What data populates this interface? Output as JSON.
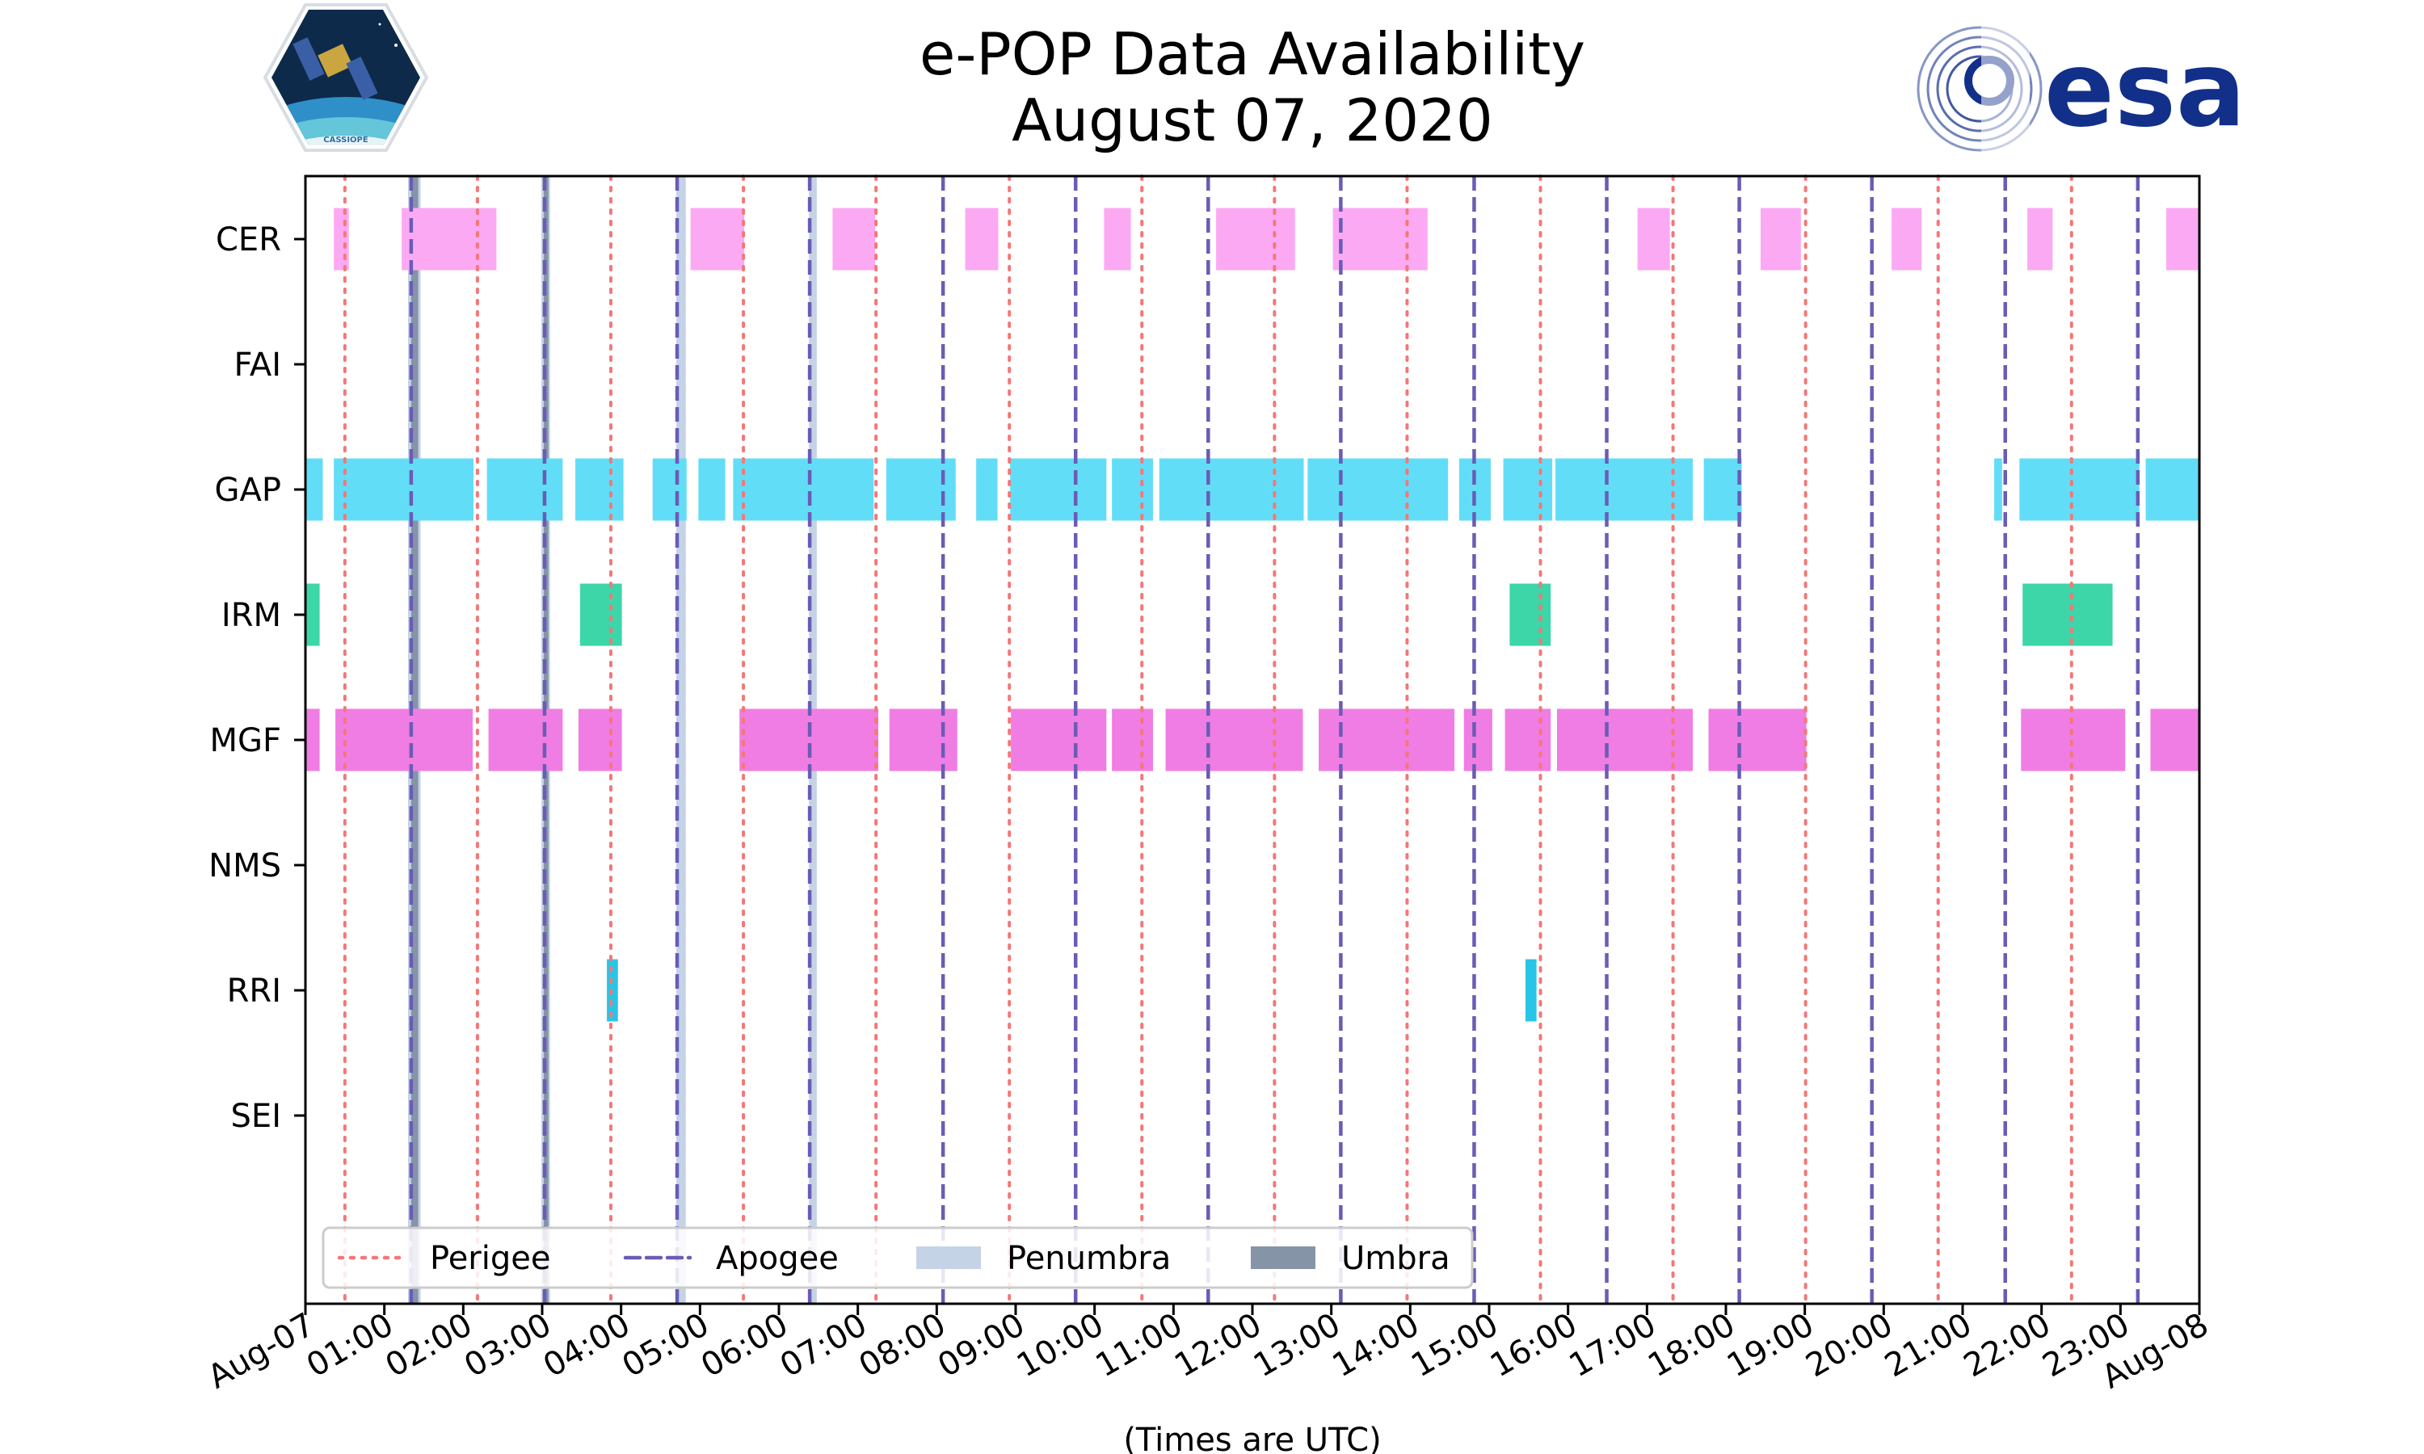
{
  "chart_data": {
    "type": "timeline",
    "title": "e-POP Data Availability",
    "subtitle": "August 07, 2020",
    "xlabel": "(Times are UTC)",
    "xlim_hours": [
      0,
      24
    ],
    "x_tick_labels": [
      "Aug-07",
      "01:00",
      "02:00",
      "03:00",
      "04:00",
      "05:00",
      "06:00",
      "07:00",
      "08:00",
      "09:00",
      "10:00",
      "11:00",
      "12:00",
      "13:00",
      "14:00",
      "15:00",
      "16:00",
      "17:00",
      "18:00",
      "19:00",
      "20:00",
      "21:00",
      "22:00",
      "23:00",
      "Aug-08"
    ],
    "instruments": [
      "CER",
      "FAI",
      "GAP",
      "IRM",
      "MGF",
      "NMS",
      "RRI",
      "SEI"
    ],
    "colors": {
      "CER": "#fca9f4",
      "GAP": "#62ddf7",
      "IRM": "#3cd6a8",
      "MGF": "#f07de3",
      "RRI": "#29c5e6",
      "perigee": "#f47777",
      "apogee": "#6a5cb5",
      "penumbra": "#c5d3e6",
      "umbra": "#8694a8"
    },
    "series": [
      {
        "name": "CER",
        "intervals": [
          [
            0.36,
            0.55
          ],
          [
            1.22,
            2.42
          ],
          [
            4.88,
            5.56
          ],
          [
            6.68,
            7.22
          ],
          [
            8.36,
            8.78
          ],
          [
            10.12,
            10.46
          ],
          [
            11.54,
            12.54
          ],
          [
            13.02,
            14.22
          ],
          [
            16.88,
            17.29
          ],
          [
            18.44,
            18.95
          ],
          [
            20.1,
            20.48
          ],
          [
            21.82,
            22.14
          ],
          [
            23.58,
            24.0
          ]
        ]
      },
      {
        "name": "FAI",
        "intervals": []
      },
      {
        "name": "GAP",
        "intervals": [
          [
            0.0,
            0.22
          ],
          [
            0.36,
            2.13
          ],
          [
            2.3,
            3.26
          ],
          [
            3.42,
            4.03
          ],
          [
            4.4,
            4.83
          ],
          [
            4.98,
            5.32
          ],
          [
            5.42,
            7.2
          ],
          [
            7.36,
            8.24
          ],
          [
            8.5,
            8.77
          ],
          [
            8.93,
            10.15
          ],
          [
            10.22,
            10.74
          ],
          [
            10.82,
            12.65
          ],
          [
            12.7,
            14.48
          ],
          [
            14.62,
            15.02
          ],
          [
            15.18,
            15.8
          ],
          [
            15.84,
            17.58
          ],
          [
            17.72,
            18.2
          ],
          [
            21.4,
            21.5
          ],
          [
            21.72,
            23.24
          ],
          [
            23.32,
            24.0
          ]
        ]
      },
      {
        "name": "IRM",
        "intervals": [
          [
            0.0,
            0.18
          ],
          [
            3.48,
            4.01
          ],
          [
            15.26,
            15.78
          ],
          [
            21.76,
            22.9
          ]
        ]
      },
      {
        "name": "MGF",
        "intervals": [
          [
            0.0,
            0.18
          ],
          [
            0.38,
            2.12
          ],
          [
            2.32,
            3.26
          ],
          [
            3.46,
            4.01
          ],
          [
            5.5,
            7.26
          ],
          [
            7.4,
            8.26
          ],
          [
            8.94,
            10.15
          ],
          [
            10.22,
            10.74
          ],
          [
            10.9,
            12.64
          ],
          [
            12.84,
            14.56
          ],
          [
            14.68,
            15.04
          ],
          [
            15.2,
            15.78
          ],
          [
            15.86,
            17.58
          ],
          [
            17.78,
            19.02
          ],
          [
            21.74,
            23.06
          ],
          [
            23.38,
            24.0
          ]
        ]
      },
      {
        "name": "NMS",
        "intervals": []
      },
      {
        "name": "RRI",
        "intervals": [
          [
            3.82,
            3.96
          ],
          [
            15.46,
            15.6
          ]
        ]
      },
      {
        "name": "SEI",
        "intervals": []
      }
    ],
    "perigee_hours": [
      0.5,
      2.18,
      3.87,
      5.55,
      7.23,
      8.92,
      10.6,
      12.28,
      13.96,
      15.65,
      17.33,
      19.01,
      20.69,
      22.38
    ],
    "apogee_hours": [
      1.34,
      3.03,
      4.71,
      6.39,
      8.08,
      9.76,
      11.44,
      13.12,
      14.81,
      16.49,
      18.17,
      19.85,
      21.54,
      23.22
    ],
    "penumbra_intervals": [
      [
        1.3,
        1.46
      ],
      [
        2.99,
        3.1
      ],
      [
        4.7,
        4.82
      ],
      [
        6.38,
        6.48
      ]
    ],
    "umbra_intervals": [
      [
        1.34,
        1.43
      ],
      [
        3.02,
        3.08
      ]
    ],
    "legend": {
      "position": "lower-left",
      "entries": [
        "Perigee",
        "Apogee",
        "Penumbra",
        "Umbra"
      ]
    }
  },
  "logos": {
    "left": "CASSIOPE",
    "right": "esa"
  }
}
